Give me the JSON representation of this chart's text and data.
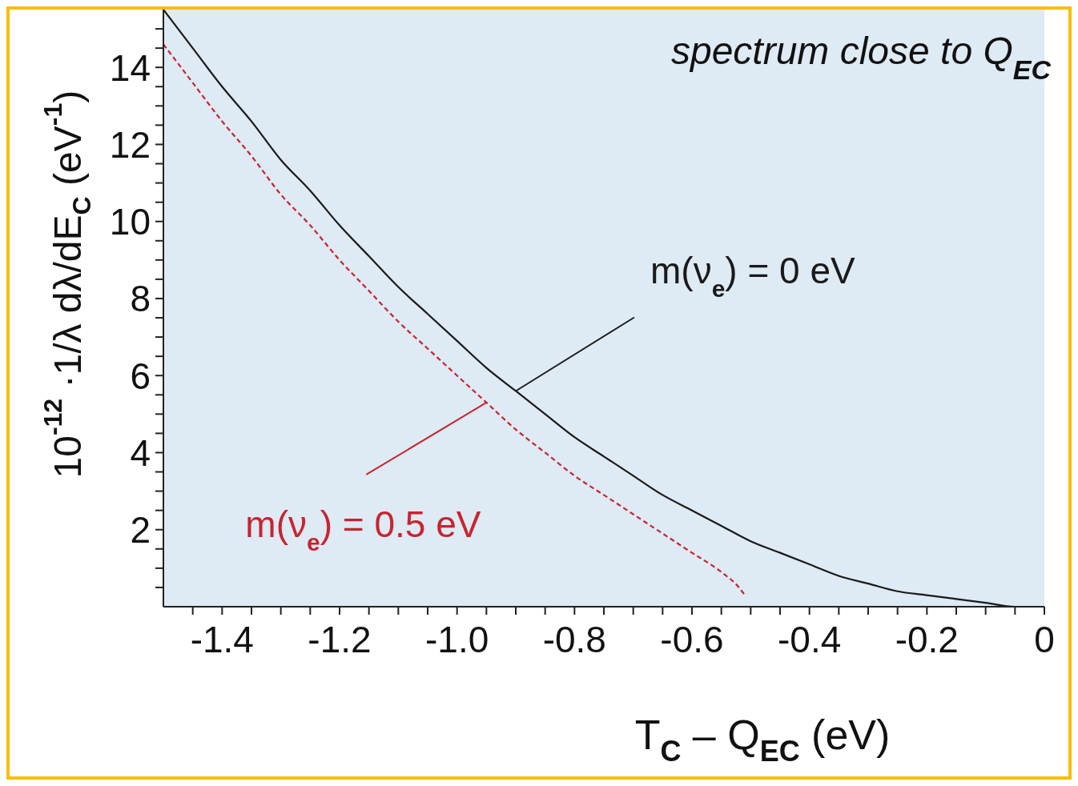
{
  "chart_data": {
    "type": "line",
    "title": "spectrum close to Q$_{EC}$",
    "xlabel": "T$_{C}$ – Q$_{EC}$ (eV)",
    "ylabel": "10$^{-12}$ ·1/λ  dλ/dE$_{C}$ (eV$^{-1}$)",
    "xlim": [
      -1.5,
      0
    ],
    "ylim": [
      0,
      15.5
    ],
    "xticks": [
      {
        "value": -1.45,
        "label": null
      },
      {
        "value": -1.4,
        "label": "-1.4"
      },
      {
        "value": -1.35,
        "label": null
      },
      {
        "value": -1.3,
        "label": null
      },
      {
        "value": -1.25,
        "label": null
      },
      {
        "value": -1.2,
        "label": "-1.2"
      },
      {
        "value": -1.15,
        "label": null
      },
      {
        "value": -1.1,
        "label": null
      },
      {
        "value": -1.05,
        "label": null
      },
      {
        "value": -1,
        "label": "-1.0"
      },
      {
        "value": -0.95,
        "label": null
      },
      {
        "value": -0.9,
        "label": null
      },
      {
        "value": -0.85,
        "label": null
      },
      {
        "value": -0.8,
        "label": "-0.8"
      },
      {
        "value": -0.75,
        "label": null
      },
      {
        "value": -0.7,
        "label": null
      },
      {
        "value": -0.65,
        "label": null
      },
      {
        "value": -0.6,
        "label": "-0.6"
      },
      {
        "value": -0.55,
        "label": null
      },
      {
        "value": -0.5,
        "label": null
      },
      {
        "value": -0.45,
        "label": null
      },
      {
        "value": -0.4,
        "label": "-0.4"
      },
      {
        "value": -0.35,
        "label": null
      },
      {
        "value": -0.3,
        "label": null
      },
      {
        "value": -0.25,
        "label": null
      },
      {
        "value": -0.2,
        "label": "-0.2"
      },
      {
        "value": -0.15,
        "label": null
      },
      {
        "value": -0.1,
        "label": null
      },
      {
        "value": -0.05,
        "label": null
      },
      {
        "value": 0,
        "label": "0"
      }
    ],
    "yticks": [
      {
        "value": 0.5,
        "label": null
      },
      {
        "value": 1,
        "label": null
      },
      {
        "value": 1.5,
        "label": null
      },
      2,
      {
        "value": 2.5,
        "label": null
      },
      {
        "value": 3,
        "label": null
      },
      {
        "value": 3.5,
        "label": null
      },
      4,
      {
        "value": 4.5,
        "label": null
      },
      {
        "value": 5,
        "label": null
      },
      {
        "value": 5.5,
        "label": null
      },
      6,
      {
        "value": 6.5,
        "label": null
      },
      {
        "value": 7,
        "label": null
      },
      {
        "value": 7.5,
        "label": null
      },
      8,
      {
        "value": 8.5,
        "label": null
      },
      {
        "value": 9,
        "label": null
      },
      {
        "value": 9.5,
        "label": null
      },
      10,
      {
        "value": 10.5,
        "label": null
      },
      {
        "value": 11,
        "label": null
      },
      {
        "value": 11.5,
        "label": null
      },
      12,
      {
        "value": 12.5,
        "label": null
      },
      {
        "value": 13,
        "label": null
      },
      {
        "value": 13.5,
        "label": null
      },
      14,
      {
        "value": 14.5,
        "label": null
      },
      {
        "value": 15,
        "label": null
      }
    ],
    "marker": "none",
    "series": [
      {
        "name": "m(ν$_{e}$) = 0 eV",
        "color": "#1a1a1a",
        "line_style": "solid",
        "x": [
          -1.5,
          -1.45,
          -1.4,
          -1.35,
          -1.3,
          -1.25,
          -1.2,
          -1.15,
          -1.1,
          -1.05,
          -1,
          -0.95,
          -0.9,
          -0.85,
          -0.8,
          -0.75,
          -0.7,
          -0.65,
          -0.6,
          -0.55,
          -0.5,
          -0.45,
          -0.4,
          -0.35,
          -0.3,
          -0.25,
          -0.2,
          -0.15,
          -0.1,
          -0.05,
          0
        ],
        "values": [
          15.5,
          14.5,
          13.5,
          12.6,
          11.6,
          10.8,
          9.9,
          9.1,
          8.3,
          7.6,
          6.9,
          6.2,
          5.6,
          5.0,
          4.4,
          3.9,
          3.4,
          2.9,
          2.5,
          2.1,
          1.7,
          1.4,
          1.1,
          0.8,
          0.6,
          0.4,
          0.3,
          0.2,
          0.1,
          0,
          0
        ]
      },
      {
        "name": "m(ν$_{e}$) = 0.5 eV",
        "color": "#c8242f",
        "line_style": "dashed",
        "x": [
          -1.5,
          -1.45,
          -1.4,
          -1.35,
          -1.3,
          -1.25,
          -1.2,
          -1.15,
          -1.1,
          -1.05,
          -1,
          -0.95,
          -0.9,
          -0.85,
          -0.8,
          -0.75,
          -0.7,
          -0.65,
          -0.6,
          -0.55,
          -0.52,
          -0.51
        ],
        "values": [
          14.6,
          13.6,
          12.6,
          11.7,
          10.7,
          9.9,
          9.0,
          8.2,
          7.4,
          6.7,
          6.0,
          5.3,
          4.6,
          4.0,
          3.4,
          2.9,
          2.4,
          1.9,
          1.4,
          0.9,
          0.5,
          0.3
        ]
      }
    ]
  }
}
